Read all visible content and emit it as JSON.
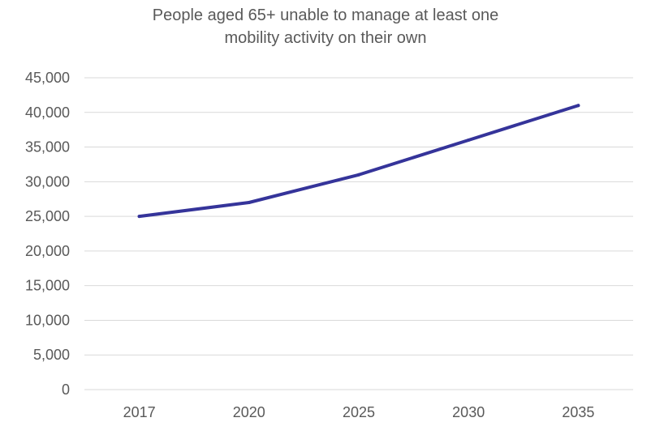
{
  "chart_data": {
    "type": "line",
    "title_lines": [
      "People aged 65+ unable to manage at least one",
      "mobility activity on their own"
    ],
    "categories": [
      "2017",
      "2020",
      "2025",
      "2030",
      "2035"
    ],
    "series": [
      {
        "values": [
          25000,
          27000,
          31000,
          36000,
          41000
        ]
      }
    ],
    "ylim": [
      0,
      45000
    ],
    "yticks": [
      0,
      5000,
      10000,
      15000,
      20000,
      25000,
      30000,
      35000,
      40000,
      45000
    ],
    "ytick_labels": [
      "0",
      "5,000",
      "10,000",
      "15,000",
      "20,000",
      "25,000",
      "30,000",
      "35,000",
      "40,000",
      "45,000"
    ],
    "xlabel": "",
    "ylabel": "",
    "grid": true,
    "legend": "none",
    "line_color": "#35349a"
  }
}
